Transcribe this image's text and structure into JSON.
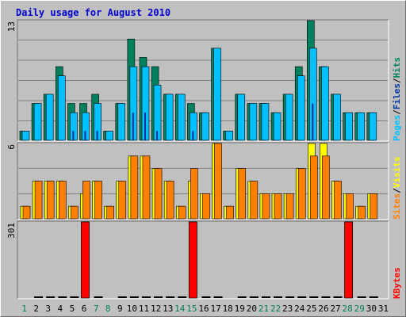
{
  "title": "Daily usage for August 2010",
  "colors": {
    "background": "#c0c0c0",
    "frame_light": "#ffffff",
    "frame_dark": "#707070",
    "grid": "#808080",
    "title": "#0000cc",
    "hits": "#00805c",
    "files": "#00c0ff",
    "pages": "#00309c",
    "visits": "#ffff00",
    "sites": "#ff8000",
    "kbytes": "#ff0000",
    "weekday_label": "#000000",
    "weekend_label": "#00805c"
  },
  "chart_data": [
    {
      "type": "bar",
      "panel": "hits-files-pages",
      "ylim": [
        0,
        13
      ],
      "y_top_label": "13",
      "legend": [
        "Pages",
        "Files",
        "Hits"
      ],
      "legend_separator": "/",
      "categories": [
        "1",
        "2",
        "3",
        "4",
        "5",
        "6",
        "7",
        "8",
        "9",
        "10",
        "11",
        "12",
        "13",
        "14",
        "15",
        "16",
        "17",
        "18",
        "19",
        "20",
        "21",
        "22",
        "23",
        "24",
        "25",
        "26",
        "27",
        "28",
        "29",
        "30",
        "31"
      ],
      "series": [
        {
          "name": "Hits",
          "values": [
            1,
            4,
            5,
            8,
            4,
            4,
            5,
            1,
            4,
            11,
            9,
            8,
            5,
            5,
            4,
            3,
            10,
            1,
            5,
            4,
            4,
            3,
            5,
            8,
            13,
            8,
            5,
            3,
            3,
            3,
            0
          ]
        },
        {
          "name": "Files",
          "values": [
            1,
            4,
            5,
            7,
            3,
            3,
            4,
            1,
            4,
            8,
            8,
            6,
            5,
            5,
            3,
            3,
            10,
            1,
            5,
            4,
            4,
            3,
            5,
            7,
            10,
            8,
            5,
            3,
            3,
            3,
            0
          ]
        },
        {
          "name": "Pages",
          "values": [
            0,
            0,
            0,
            0,
            1,
            1,
            1,
            0,
            0,
            3,
            3,
            1,
            0,
            0,
            1,
            0,
            0,
            0,
            0,
            0,
            0,
            0,
            0,
            0,
            4,
            0,
            0,
            0,
            0,
            0,
            0
          ]
        }
      ]
    },
    {
      "type": "bar",
      "panel": "visits-sites",
      "ylim": [
        0,
        6
      ],
      "y_top_label": "6",
      "legend": [
        "Sites",
        "Visits"
      ],
      "legend_separator": "/",
      "categories": [
        "1",
        "2",
        "3",
        "4",
        "5",
        "6",
        "7",
        "8",
        "9",
        "10",
        "11",
        "12",
        "13",
        "14",
        "15",
        "16",
        "17",
        "18",
        "19",
        "20",
        "21",
        "22",
        "23",
        "24",
        "25",
        "26",
        "27",
        "28",
        "29",
        "30",
        "31"
      ],
      "series": [
        {
          "name": "Visits",
          "values": [
            1,
            3,
            3,
            3,
            1,
            2,
            3,
            1,
            3,
            5,
            5,
            4,
            3,
            1,
            3,
            2,
            6,
            1,
            4,
            3,
            2,
            2,
            2,
            4,
            6,
            6,
            3,
            2,
            1,
            2,
            0
          ]
        },
        {
          "name": "Sites",
          "values": [
            1,
            3,
            3,
            3,
            1,
            3,
            3,
            1,
            3,
            5,
            5,
            4,
            3,
            1,
            4,
            2,
            6,
            1,
            4,
            3,
            2,
            2,
            2,
            4,
            5,
            5,
            3,
            2,
            1,
            2,
            0
          ]
        }
      ]
    },
    {
      "type": "bar",
      "panel": "kbytes",
      "ylim": [
        0,
        301
      ],
      "y_top_label": "301",
      "legend": [
        "KBytes"
      ],
      "categories": [
        "1",
        "2",
        "3",
        "4",
        "5",
        "6",
        "7",
        "8",
        "9",
        "10",
        "11",
        "12",
        "13",
        "14",
        "15",
        "16",
        "17",
        "18",
        "19",
        "20",
        "21",
        "22",
        "23",
        "24",
        "25",
        "26",
        "27",
        "28",
        "29",
        "30",
        "31"
      ],
      "weekend_days": [
        "1",
        "7",
        "8",
        "14",
        "15",
        "21",
        "22",
        "28",
        "29"
      ],
      "series": [
        {
          "name": "KBytes",
          "values": [
            0,
            3,
            3,
            3,
            3,
            301,
            3,
            0,
            3,
            3,
            3,
            3,
            3,
            3,
            301,
            3,
            3,
            0,
            3,
            3,
            3,
            3,
            3,
            3,
            3,
            3,
            3,
            301,
            3,
            3,
            0
          ]
        }
      ]
    }
  ]
}
